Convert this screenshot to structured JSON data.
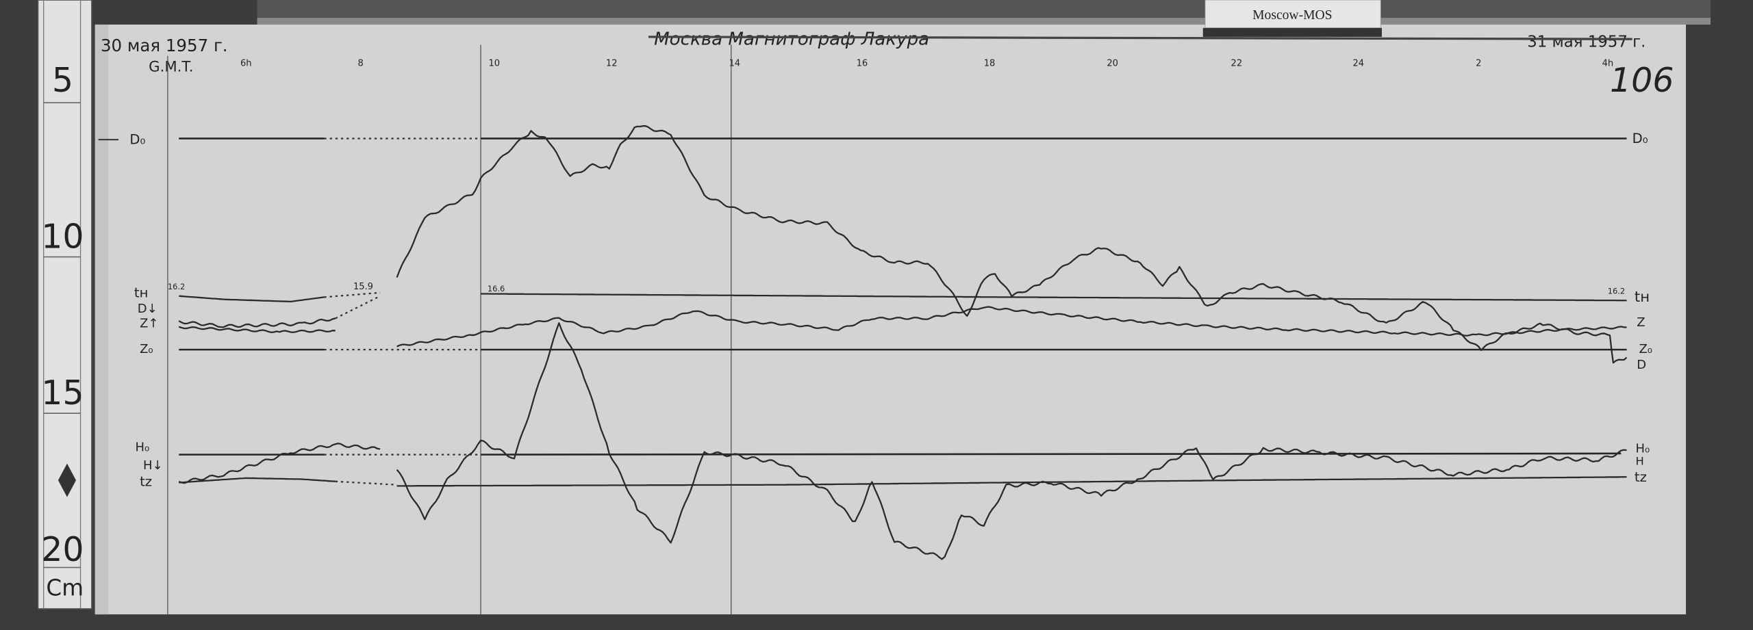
{
  "label_tag": "Moscow-MOS",
  "header": {
    "date_start": "30 мая 1957 г.",
    "date_end": "31 мая 1957 г.",
    "title": "Москва   Магнитограф   Лакура",
    "time_zone": "G.M.T.",
    "sheet_number": "106"
  },
  "time_ticks": [
    "6h",
    "8",
    "10",
    "12",
    "14",
    "16",
    "18",
    "20",
    "22",
    "24",
    "2",
    "4h"
  ],
  "temperatures": [
    "16.2",
    "15.9",
    "16.6",
    "16.2"
  ],
  "left_labels": {
    "d0": "D₀",
    "tn": "tн",
    "d": "D↓",
    "z": "Z↑",
    "z0": "Z₀",
    "h0": "H₀",
    "h": "H↓",
    "tz": "tz"
  },
  "right_labels": {
    "d0": "D₀",
    "tn": "tн",
    "z": "Z",
    "z0": "Z₀",
    "d": "D",
    "h0": "H₀",
    "h": "H",
    "tz": "tz"
  },
  "ruler": {
    "marks": [
      "5",
      "10",
      "15",
      "20"
    ],
    "unit": "Cm"
  },
  "colors": {
    "paper": "#d3d3d3",
    "background": "#3b3b3b",
    "ink": "#262626"
  }
}
